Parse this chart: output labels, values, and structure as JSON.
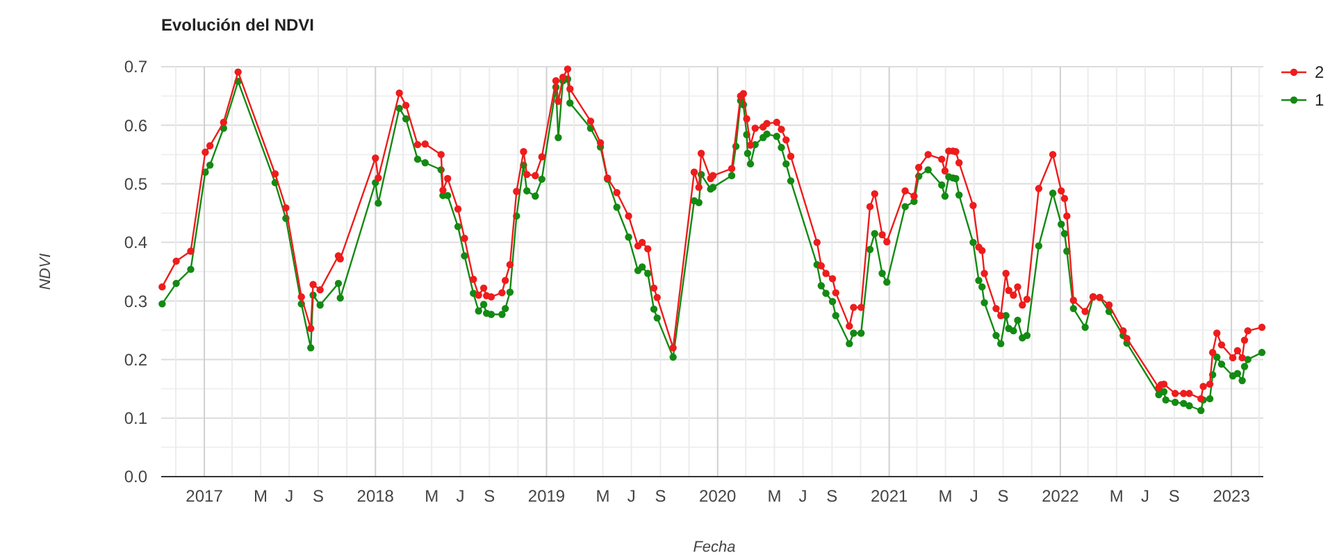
{
  "chart_data": {
    "type": "line",
    "title": "Evolución del NDVI",
    "xlabel": "Fecha",
    "ylabel": "NDVI",
    "grid": true,
    "legend": "top right",
    "marker": "circle",
    "xlim": [
      "2016-10-01",
      "2023-03-10"
    ],
    "xticks": [
      {
        "value": "2016-11-01",
        "label": null
      },
      {
        "value": "2017-01-01",
        "label": "2017"
      },
      {
        "value": "2017-03-01",
        "label": null
      },
      {
        "value": "2017-05-01",
        "label": "M"
      },
      {
        "value": "2017-07-01",
        "label": "J"
      },
      {
        "value": "2017-09-01",
        "label": "S"
      },
      {
        "value": "2017-11-01",
        "label": null
      },
      {
        "value": "2018-01-01",
        "label": "2018"
      },
      {
        "value": "2018-03-01",
        "label": null
      },
      {
        "value": "2018-05-01",
        "label": "M"
      },
      {
        "value": "2018-07-01",
        "label": "J"
      },
      {
        "value": "2018-09-01",
        "label": "S"
      },
      {
        "value": "2018-11-01",
        "label": null
      },
      {
        "value": "2019-01-01",
        "label": "2019"
      },
      {
        "value": "2019-03-01",
        "label": null
      },
      {
        "value": "2019-05-01",
        "label": "M"
      },
      {
        "value": "2019-07-01",
        "label": "J"
      },
      {
        "value": "2019-09-01",
        "label": "S"
      },
      {
        "value": "2019-11-01",
        "label": null
      },
      {
        "value": "2020-01-01",
        "label": "2020"
      },
      {
        "value": "2020-03-01",
        "label": null
      },
      {
        "value": "2020-05-01",
        "label": "M"
      },
      {
        "value": "2020-07-01",
        "label": "J"
      },
      {
        "value": "2020-09-01",
        "label": "S"
      },
      {
        "value": "2020-11-01",
        "label": null
      },
      {
        "value": "2021-01-01",
        "label": "2021"
      },
      {
        "value": "2021-03-01",
        "label": null
      },
      {
        "value": "2021-05-01",
        "label": "M"
      },
      {
        "value": "2021-07-01",
        "label": "J"
      },
      {
        "value": "2021-09-01",
        "label": "S"
      },
      {
        "value": "2021-11-01",
        "label": null
      },
      {
        "value": "2022-01-01",
        "label": "2022"
      },
      {
        "value": "2022-03-01",
        "label": null
      },
      {
        "value": "2022-05-01",
        "label": "M"
      },
      {
        "value": "2022-07-01",
        "label": "J"
      },
      {
        "value": "2022-09-01",
        "label": "S"
      },
      {
        "value": "2022-11-01",
        "label": null
      },
      {
        "value": "2023-01-01",
        "label": "2023"
      },
      {
        "value": "2023-03-01",
        "label": null
      }
    ],
    "ylim": [
      0,
      0.7
    ],
    "yticks": [
      {
        "value": 0,
        "label": "0.0"
      },
      {
        "value": 0.05,
        "label": null
      },
      0.1,
      {
        "value": 0.15,
        "label": null
      },
      0.2,
      {
        "value": 0.25,
        "label": null
      },
      0.3,
      {
        "value": 0.35,
        "label": null
      },
      0.4,
      {
        "value": 0.45,
        "label": null
      },
      0.5,
      {
        "value": 0.55,
        "label": null
      },
      0.6,
      {
        "value": 0.65,
        "label": null
      },
      0.7
    ],
    "series": [
      {
        "name": "2",
        "color": "#ee1c1c",
        "x": [
          "2016-10-03",
          "2016-11-02",
          "2016-12-03",
          "2017-01-03",
          "2017-01-13",
          "2017-02-11",
          "2017-03-14",
          "2017-06-01",
          "2017-06-24",
          "2017-07-27",
          "2017-08-16",
          "2017-08-21",
          "2017-09-05",
          "2017-10-14",
          "2017-10-18",
          "2018-01-01",
          "2018-01-07",
          "2018-02-21",
          "2018-03-07",
          "2018-04-01",
          "2018-04-17",
          "2018-05-21",
          "2018-05-25",
          "2018-06-04",
          "2018-06-26",
          "2018-07-10",
          "2018-07-29",
          "2018-08-09",
          "2018-08-20",
          "2018-08-26",
          "2018-09-05",
          "2018-09-28",
          "2018-10-05",
          "2018-10-15",
          "2018-10-29",
          "2018-11-13",
          "2018-11-20",
          "2018-12-08",
          "2018-12-22",
          "2019-01-21",
          "2019-01-26",
          "2019-02-05",
          "2019-02-15",
          "2019-02-20",
          "2019-04-05",
          "2019-04-26",
          "2019-05-11",
          "2019-05-31",
          "2019-06-25",
          "2019-07-15",
          "2019-07-24",
          "2019-08-05",
          "2019-08-18",
          "2019-08-25",
          "2019-09-28",
          "2019-11-12",
          "2019-11-22",
          "2019-11-27",
          "2019-12-17",
          "2019-12-22",
          "2020-01-31",
          "2020-02-19",
          "2020-02-25",
          "2020-03-03",
          "2020-03-11",
          "2020-03-21",
          "2020-04-07",
          "2020-04-15",
          "2020-05-06",
          "2020-05-16",
          "2020-05-26",
          "2020-06-05",
          "2020-07-31",
          "2020-08-09",
          "2020-08-19",
          "2020-09-02",
          "2020-09-09",
          "2020-10-08",
          "2020-10-17",
          "2020-11-02",
          "2020-11-21",
          "2020-12-01",
          "2020-12-17",
          "2020-12-27",
          "2021-02-04",
          "2021-02-23",
          "2021-03-05",
          "2021-03-25",
          "2021-04-23",
          "2021-04-30",
          "2021-05-08",
          "2021-05-17",
          "2021-05-23",
          "2021-05-30",
          "2021-06-29",
          "2021-07-11",
          "2021-07-18",
          "2021-07-23",
          "2021-08-17",
          "2021-08-27",
          "2021-09-07",
          "2021-09-13",
          "2021-09-23",
          "2021-10-02",
          "2021-10-12",
          "2021-10-22",
          "2021-11-16",
          "2021-12-16",
          "2022-01-03",
          "2022-01-10",
          "2022-01-15",
          "2022-01-29",
          "2022-02-23",
          "2022-03-12",
          "2022-03-26",
          "2022-04-15",
          "2022-05-15",
          "2022-05-23",
          "2022-07-30",
          "2022-08-04",
          "2022-08-10",
          "2022-09-03",
          "2022-09-21",
          "2022-10-03",
          "2022-10-28",
          "2022-11-02",
          "2022-11-16",
          "2022-11-22",
          "2022-12-01",
          "2022-12-11",
          "2023-01-04",
          "2023-01-14",
          "2023-01-24",
          "2023-01-29",
          "2023-02-05",
          "2023-03-07"
        ],
        "values": [
          0.324,
          0.368,
          0.385,
          0.554,
          0.565,
          0.605,
          0.691,
          0.517,
          0.459,
          0.307,
          0.253,
          0.328,
          0.319,
          0.377,
          0.372,
          0.544,
          0.51,
          0.655,
          0.634,
          0.567,
          0.568,
          0.55,
          0.489,
          0.509,
          0.457,
          0.407,
          0.337,
          0.31,
          0.322,
          0.309,
          0.307,
          0.314,
          0.335,
          0.362,
          0.487,
          0.555,
          0.516,
          0.514,
          0.546,
          0.676,
          0.641,
          0.682,
          0.696,
          0.662,
          0.607,
          0.57,
          0.51,
          0.485,
          0.445,
          0.394,
          0.4,
          0.389,
          0.322,
          0.306,
          0.22,
          0.52,
          0.494,
          0.552,
          0.509,
          0.514,
          0.526,
          0.65,
          0.654,
          0.611,
          0.566,
          0.595,
          0.597,
          0.603,
          0.605,
          0.593,
          0.575,
          0.547,
          0.4,
          0.36,
          0.347,
          0.338,
          0.314,
          0.257,
          0.289,
          0.289,
          0.461,
          0.483,
          0.413,
          0.401,
          0.488,
          0.479,
          0.528,
          0.55,
          0.542,
          0.522,
          0.556,
          0.556,
          0.555,
          0.536,
          0.463,
          0.392,
          0.386,
          0.347,
          0.287,
          0.275,
          0.347,
          0.318,
          0.31,
          0.324,
          0.293,
          0.303,
          0.492,
          0.55,
          0.488,
          0.475,
          0.445,
          0.301,
          0.282,
          0.307,
          0.306,
          0.293,
          0.249,
          0.236,
          0.152,
          0.157,
          0.158,
          0.142,
          0.142,
          0.142,
          0.133,
          0.154,
          0.158,
          0.212,
          0.245,
          0.225,
          0.203,
          0.215,
          0.203,
          0.233,
          0.249,
          0.255
        ]
      },
      {
        "name": "1",
        "color": "#138a13",
        "x": [
          "2016-10-03",
          "2016-11-02",
          "2016-12-03",
          "2017-01-03",
          "2017-01-13",
          "2017-02-11",
          "2017-03-14",
          "2017-06-01",
          "2017-06-24",
          "2017-07-27",
          "2017-08-16",
          "2017-08-21",
          "2017-09-05",
          "2017-10-14",
          "2017-10-18",
          "2018-01-01",
          "2018-01-07",
          "2018-02-21",
          "2018-03-07",
          "2018-04-01",
          "2018-04-17",
          "2018-05-21",
          "2018-05-25",
          "2018-06-04",
          "2018-06-26",
          "2018-07-10",
          "2018-07-29",
          "2018-08-09",
          "2018-08-20",
          "2018-08-26",
          "2018-09-05",
          "2018-09-28",
          "2018-10-05",
          "2018-10-15",
          "2018-10-29",
          "2018-11-13",
          "2018-11-20",
          "2018-12-08",
          "2018-12-22",
          "2019-01-21",
          "2019-01-26",
          "2019-02-05",
          "2019-02-15",
          "2019-02-20",
          "2019-04-05",
          "2019-04-26",
          "2019-05-11",
          "2019-05-31",
          "2019-06-25",
          "2019-07-15",
          "2019-07-24",
          "2019-08-05",
          "2019-08-18",
          "2019-08-25",
          "2019-09-28",
          "2019-11-12",
          "2019-11-22",
          "2019-11-27",
          "2019-12-17",
          "2019-12-22",
          "2020-01-31",
          "2020-02-09",
          "2020-02-19",
          "2020-02-25",
          "2020-03-03",
          "2020-03-05",
          "2020-03-11",
          "2020-03-21",
          "2020-04-07",
          "2020-04-15",
          "2020-05-06",
          "2020-05-16",
          "2020-05-26",
          "2020-06-05",
          "2020-07-31",
          "2020-08-09",
          "2020-08-19",
          "2020-09-02",
          "2020-09-09",
          "2020-10-08",
          "2020-10-17",
          "2020-11-02",
          "2020-11-21",
          "2020-12-01",
          "2020-12-17",
          "2020-12-27",
          "2021-02-04",
          "2021-02-23",
          "2021-03-05",
          "2021-03-25",
          "2021-04-23",
          "2021-04-30",
          "2021-05-08",
          "2021-05-17",
          "2021-05-23",
          "2021-05-30",
          "2021-06-29",
          "2021-07-11",
          "2021-07-18",
          "2021-07-23",
          "2021-08-17",
          "2021-08-27",
          "2021-09-07",
          "2021-09-13",
          "2021-09-23",
          "2021-10-02",
          "2021-10-12",
          "2021-10-22",
          "2021-11-16",
          "2021-12-16",
          "2022-01-03",
          "2022-01-10",
          "2022-01-15",
          "2022-01-29",
          "2022-02-23",
          "2022-03-12",
          "2022-03-26",
          "2022-04-15",
          "2022-05-15",
          "2022-05-23",
          "2022-07-30",
          "2022-08-04",
          "2022-08-10",
          "2022-08-14",
          "2022-09-03",
          "2022-09-21",
          "2022-10-03",
          "2022-10-28",
          "2022-11-02",
          "2022-11-16",
          "2022-11-22",
          "2022-12-01",
          "2022-12-11",
          "2023-01-04",
          "2023-01-14",
          "2023-01-24",
          "2023-01-29",
          "2023-02-05",
          "2023-03-07"
        ],
        "values": [
          0.295,
          0.33,
          0.354,
          0.52,
          0.532,
          0.595,
          0.675,
          0.502,
          0.441,
          0.295,
          0.22,
          0.31,
          0.293,
          0.33,
          0.305,
          0.502,
          0.467,
          0.629,
          0.611,
          0.542,
          0.536,
          0.524,
          0.48,
          0.48,
          0.427,
          0.377,
          0.313,
          0.283,
          0.294,
          0.279,
          0.277,
          0.277,
          0.287,
          0.315,
          0.445,
          0.532,
          0.488,
          0.479,
          0.508,
          0.665,
          0.579,
          0.676,
          0.679,
          0.638,
          0.595,
          0.563,
          0.508,
          0.46,
          0.409,
          0.352,
          0.358,
          0.347,
          0.286,
          0.271,
          0.204,
          0.471,
          0.468,
          0.516,
          0.491,
          0.494,
          0.514,
          0.564,
          0.642,
          0.635,
          0.584,
          0.552,
          0.534,
          0.567,
          0.579,
          0.585,
          0.581,
          0.562,
          0.534,
          0.505,
          0.362,
          0.326,
          0.313,
          0.299,
          0.275,
          0.227,
          0.245,
          0.245,
          0.388,
          0.415,
          0.347,
          0.332,
          0.461,
          0.47,
          0.513,
          0.524,
          0.498,
          0.479,
          0.512,
          0.51,
          0.509,
          0.481,
          0.4,
          0.335,
          0.324,
          0.297,
          0.241,
          0.227,
          0.275,
          0.253,
          0.249,
          0.267,
          0.237,
          0.241,
          0.394,
          0.484,
          0.431,
          0.415,
          0.385,
          0.287,
          0.255,
          0.307,
          0.306,
          0.282,
          0.241,
          0.228,
          0.14,
          0.145,
          0.145,
          0.131,
          0.127,
          0.125,
          0.121,
          0.113,
          0.131,
          0.133,
          0.174,
          0.204,
          0.192,
          0.172,
          0.176,
          0.164,
          0.188,
          0.2,
          0.212
        ]
      }
    ]
  }
}
